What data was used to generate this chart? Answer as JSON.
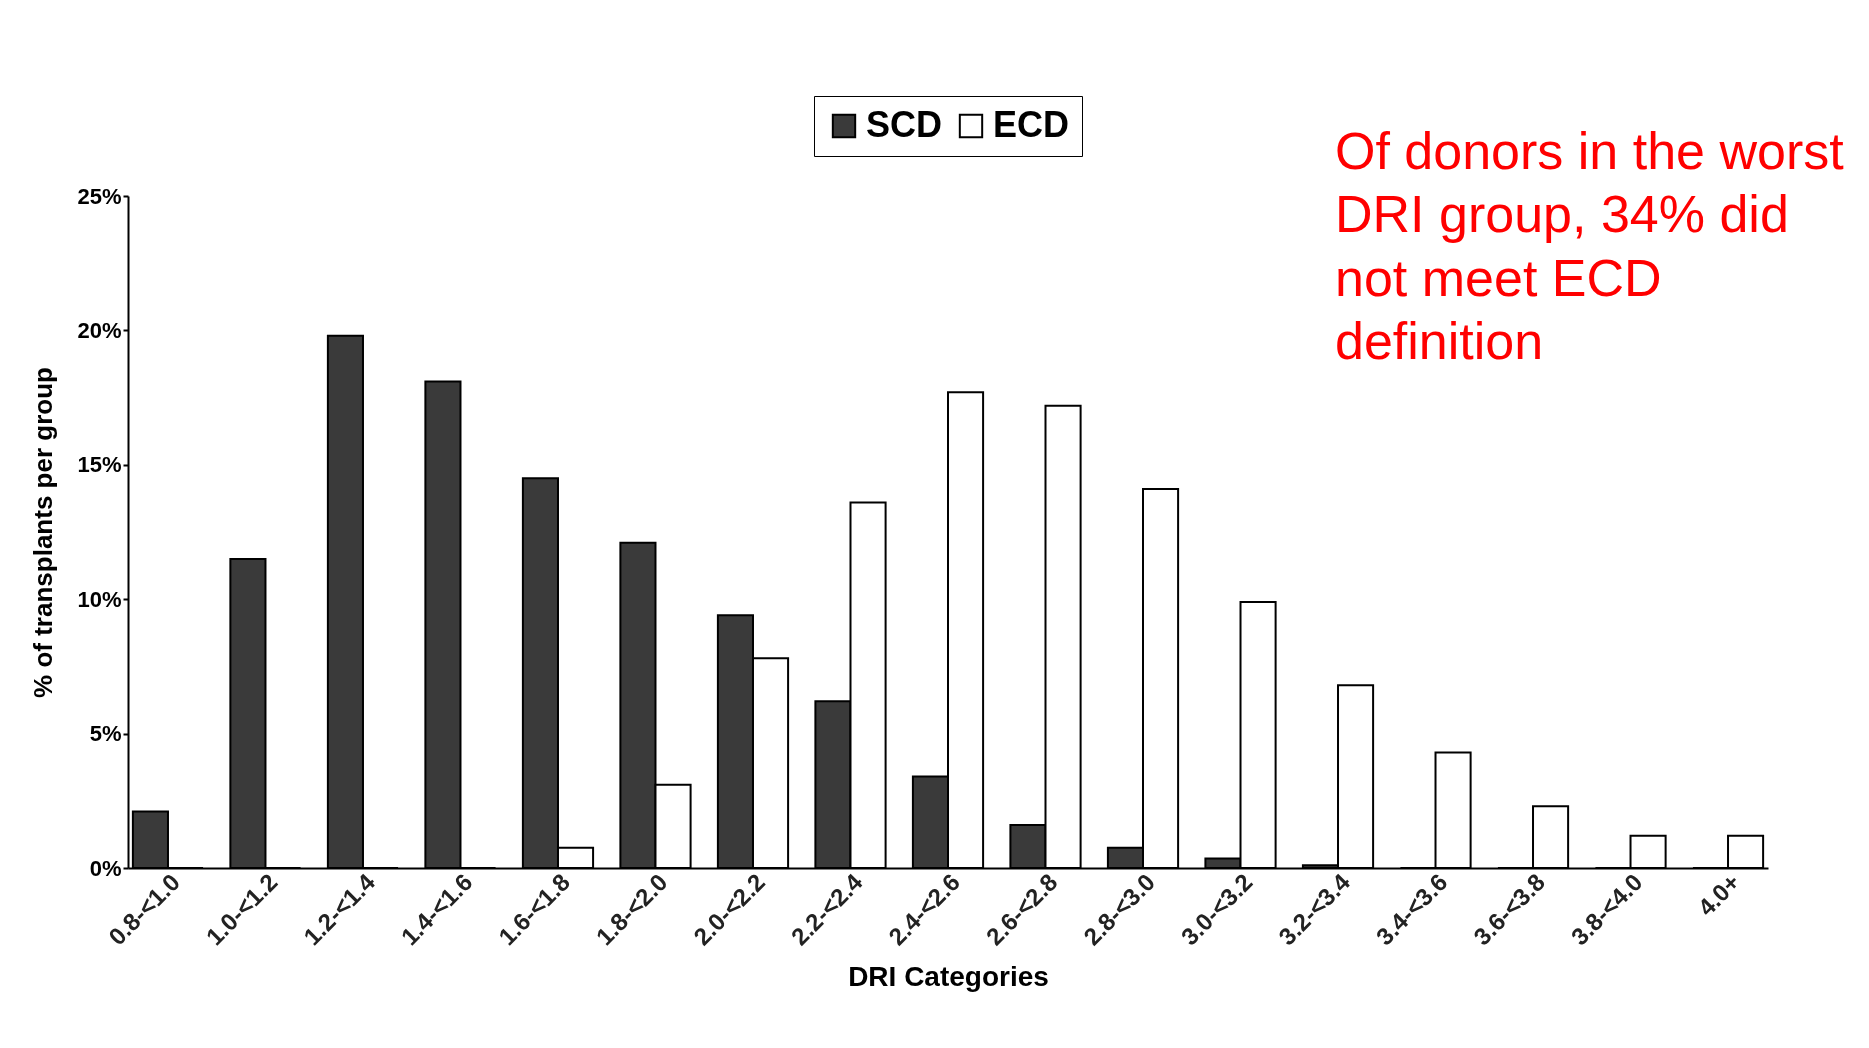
{
  "chart_data": {
    "type": "bar",
    "xlabel": "DRI Categories",
    "ylabel": "% of transplants per group",
    "categories": [
      "0.8-<1.0",
      "1.0-<1.2",
      "1.2-<1.4",
      "1.4-<1.6",
      "1.6-<1.8",
      "1.8-<2.0",
      "2.0-<2.2",
      "2.2-<2.4",
      "2.4-<2.6",
      "2.6-<2.8",
      "2.8-<3.0",
      "3.0-<3.2",
      "3.2-<3.4",
      "3.4-<3.6",
      "3.6-<3.8",
      "3.8-<4.0",
      "4.0+"
    ],
    "series": [
      {
        "name": "SCD",
        "color": "#3a3a3a",
        "values": [
          2.1,
          11.5,
          19.8,
          18.1,
          14.5,
          12.1,
          9.4,
          6.2,
          3.4,
          1.6,
          0.75,
          0.35,
          0.1,
          0,
          0,
          0,
          0
        ]
      },
      {
        "name": "ECD",
        "color": "#ffffff",
        "values": [
          0,
          0,
          0,
          0,
          0.75,
          3.1,
          7.8,
          13.6,
          17.7,
          17.2,
          14.1,
          9.9,
          6.8,
          4.3,
          2.3,
          1.2,
          1.2
        ]
      }
    ],
    "ylim": [
      0,
      25
    ],
    "yticks": [
      {
        "value": 0,
        "label": "0%"
      },
      {
        "value": 5,
        "label": "5%"
      },
      {
        "value": 10,
        "label": "10%"
      },
      {
        "value": 15,
        "label": "15%"
      },
      {
        "value": 20,
        "label": "20%"
      },
      {
        "value": 25,
        "label": "25%"
      }
    ],
    "grid": false,
    "legend": "top",
    "annotations": [
      "Of donors in the worst DRI group, 34% did not meet ECD definition"
    ]
  }
}
